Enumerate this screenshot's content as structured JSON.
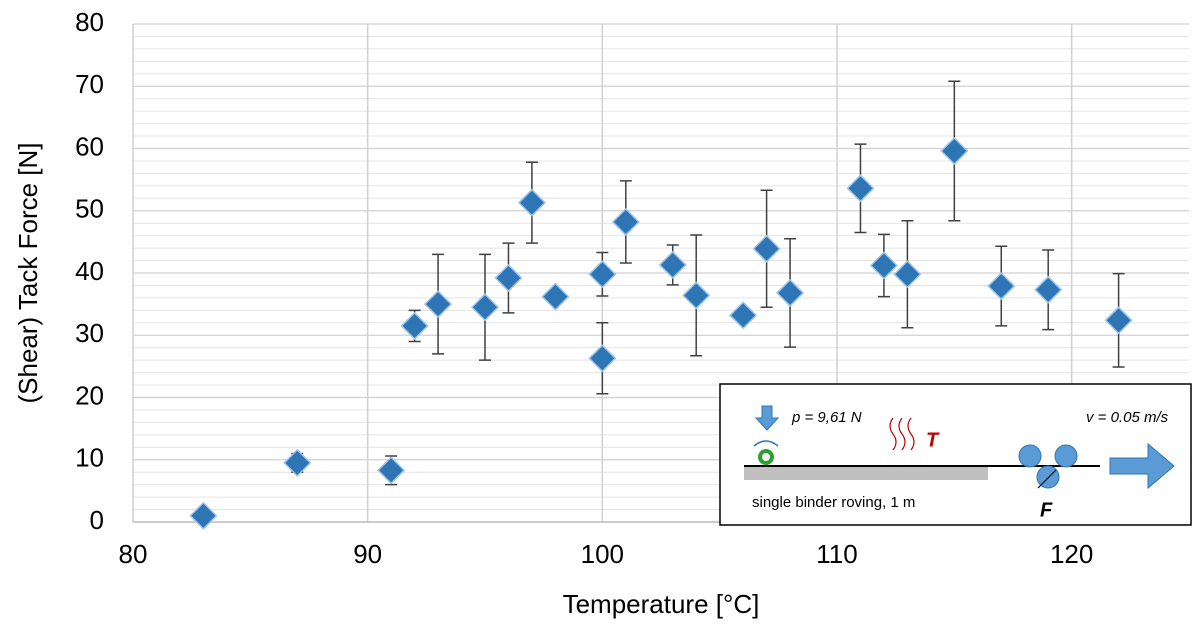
{
  "chart_data": {
    "type": "scatter",
    "xlabel": "Temperature [°C]",
    "ylabel": "(Shear) Tack Force [N]",
    "xlim": [
      80,
      125
    ],
    "xticks": [
      80,
      90,
      100,
      110,
      120
    ],
    "ylim": [
      0,
      80
    ],
    "yticks": [
      0,
      10,
      20,
      30,
      40,
      50,
      60,
      70,
      80
    ],
    "grid": true,
    "series": [
      {
        "color": "#2e75b6",
        "x": [
          83,
          87,
          91,
          92,
          93,
          95,
          96,
          97,
          98,
          100,
          100,
          101,
          103,
          104,
          106,
          107,
          108,
          111,
          112,
          113,
          115,
          117,
          119,
          122
        ],
        "values": [
          1,
          9.5,
          8.3,
          31.5,
          35,
          34.5,
          39.2,
          51.3,
          36.2,
          39.8,
          26.3,
          48.2,
          41.3,
          36.4,
          33.2,
          43.9,
          36.8,
          53.6,
          41.2,
          39.8,
          59.6,
          37.9,
          37.3,
          32.4
        ],
        "errors": [
          0,
          1.5,
          2.3,
          2.5,
          8,
          8.5,
          5.6,
          6.5,
          0,
          3.5,
          5.7,
          6.6,
          3.2,
          9.7,
          0,
          9.4,
          8.7,
          7.1,
          5,
          8.6,
          11.2,
          6.4,
          6.4,
          7.5
        ]
      }
    ]
  },
  "inset": {
    "pressure": "p = 9,61 N",
    "temperature": "T",
    "velocity": "v = 0.05 m/s",
    "caption": "single binder roving, 1 m",
    "force": "F"
  }
}
